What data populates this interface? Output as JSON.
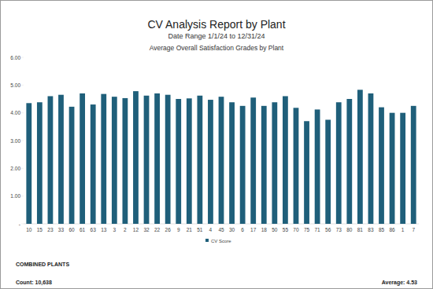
{
  "chart_data": {
    "type": "bar",
    "title": "CV Analysis Report by Plant",
    "subtitle": "Date Range 1/1/24 to 12/31/24",
    "chart_title": "Average Overall Satisfaction Grades by Plant",
    "categories": [
      "10",
      "15",
      "23",
      "33",
      "60",
      "61",
      "63",
      "13",
      "3",
      "2",
      "12",
      "32",
      "22",
      "26",
      "9",
      "21",
      "51",
      "4",
      "45",
      "30",
      "6",
      "17",
      "18",
      "50",
      "55",
      "70",
      "75",
      "71",
      "56",
      "73",
      "80",
      "81",
      "83",
      "85",
      "86",
      "1",
      "7"
    ],
    "series": [
      {
        "name": "CV Score",
        "color": "#1f5f7a",
        "values": [
          4.35,
          4.38,
          4.6,
          4.65,
          4.22,
          4.7,
          4.3,
          4.68,
          4.58,
          4.53,
          4.78,
          4.62,
          4.7,
          4.65,
          4.5,
          4.52,
          4.62,
          4.47,
          4.58,
          4.38,
          4.25,
          4.55,
          4.25,
          4.38,
          4.6,
          4.18,
          3.7,
          4.12,
          3.75,
          4.38,
          4.5,
          4.83,
          4.7,
          4.2,
          4.0,
          4.0,
          4.25
        ]
      }
    ],
    "ylim": [
      0,
      6
    ],
    "yticks": [
      {
        "value": 0,
        "label": "-"
      },
      {
        "value": 1,
        "label": "1.00"
      },
      {
        "value": 2,
        "label": "2.00"
      },
      {
        "value": 3,
        "label": "3.00"
      },
      {
        "value": 4,
        "label": "4.00"
      },
      {
        "value": 5,
        "label": "5.00"
      },
      {
        "value": 6,
        "label": "6.00"
      }
    ],
    "grid": false,
    "legend": "bottom",
    "footer": {
      "label": "COMBINED PLANTS",
      "count": "Count: 10,638",
      "average": "Average: 4.53"
    }
  }
}
